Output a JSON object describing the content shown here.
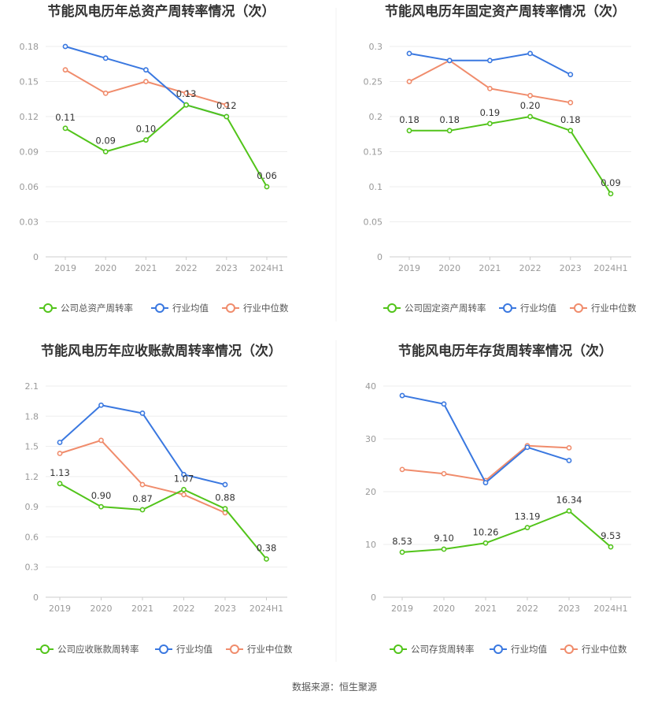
{
  "source_label": "数据来源：恒生聚源",
  "colors": {
    "company": "#52c41a",
    "industry_avg": "#3a78e0",
    "industry_median": "#f08c6c"
  },
  "chart_data": [
    {
      "type": "line",
      "title": "节能风电历年总资产周转率情况（次）",
      "categories": [
        "2019",
        "2020",
        "2021",
        "2022",
        "2023",
        "2024H1"
      ],
      "y_ticks": [
        "0",
        "0.03",
        "0.06",
        "0.09",
        "0.12",
        "0.15",
        "0.18"
      ],
      "ylim": [
        0,
        0.18
      ],
      "series": [
        {
          "name": "公司总资产周转率",
          "key": "company",
          "values": [
            0.11,
            0.09,
            0.1,
            0.13,
            0.12,
            0.06
          ],
          "labels": [
            "0.11",
            "0.09",
            "0.10",
            "0.13",
            "0.12",
            "0.06"
          ]
        },
        {
          "name": "行业均值",
          "key": "industry_avg",
          "values": [
            0.18,
            0.17,
            0.16,
            0.13,
            0.12,
            null
          ]
        },
        {
          "name": "行业中位数",
          "key": "industry_median",
          "values": [
            0.16,
            0.14,
            0.15,
            0.14,
            0.13,
            null
          ]
        }
      ]
    },
    {
      "type": "line",
      "title": "节能风电历年固定资产周转率情况（次）",
      "categories": [
        "2019",
        "2020",
        "2021",
        "2022",
        "2023",
        "2024H1"
      ],
      "y_ticks": [
        "0",
        "0.05",
        "0.1",
        "0.15",
        "0.2",
        "0.25",
        "0.3"
      ],
      "ylim": [
        0,
        0.3
      ],
      "series": [
        {
          "name": "公司固定资产周转率",
          "key": "company",
          "values": [
            0.18,
            0.18,
            0.19,
            0.2,
            0.18,
            0.09
          ],
          "labels": [
            "0.18",
            "0.18",
            "0.19",
            "0.20",
            "0.18",
            "0.09"
          ]
        },
        {
          "name": "行业均值",
          "key": "industry_avg",
          "values": [
            0.29,
            0.28,
            0.28,
            0.29,
            0.26,
            null
          ]
        },
        {
          "name": "行业中位数",
          "key": "industry_median",
          "values": [
            0.25,
            0.28,
            0.24,
            0.23,
            0.22,
            null
          ]
        }
      ]
    },
    {
      "type": "line",
      "title": "节能风电历年应收账款周转率情况（次）",
      "categories": [
        "2019",
        "2020",
        "2021",
        "2022",
        "2023",
        "2024H1"
      ],
      "y_ticks": [
        "0",
        "0.3",
        "0.6",
        "0.9",
        "1.2",
        "1.5",
        "1.8",
        "2.1"
      ],
      "ylim": [
        0,
        2.1
      ],
      "series": [
        {
          "name": "公司应收账款周转率",
          "key": "company",
          "values": [
            1.13,
            0.9,
            0.87,
            1.07,
            0.88,
            0.38
          ],
          "labels": [
            "1.13",
            "0.90",
            "0.87",
            "1.07",
            "0.88",
            "0.38"
          ]
        },
        {
          "name": "行业均值",
          "key": "industry_avg",
          "values": [
            1.54,
            1.91,
            1.83,
            1.22,
            1.12,
            null
          ]
        },
        {
          "name": "行业中位数",
          "key": "industry_median",
          "values": [
            1.43,
            1.56,
            1.12,
            1.02,
            0.84,
            null
          ]
        }
      ]
    },
    {
      "type": "line",
      "title": "节能风电历年存货周转率情况（次）",
      "categories": [
        "2019",
        "2020",
        "2021",
        "2022",
        "2023",
        "2024H1"
      ],
      "y_ticks": [
        "0",
        "10",
        "20",
        "30",
        "40"
      ],
      "ylim": [
        0,
        40
      ],
      "series": [
        {
          "name": "公司存货周转率",
          "key": "company",
          "values": [
            8.53,
            9.1,
            10.26,
            13.19,
            16.34,
            9.53
          ],
          "labels": [
            "8.53",
            "9.10",
            "10.26",
            "13.19",
            "16.34",
            "9.53"
          ]
        },
        {
          "name": "行业均值",
          "key": "industry_avg",
          "values": [
            38.2,
            36.6,
            21.7,
            28.4,
            25.9,
            null
          ]
        },
        {
          "name": "行业中位数",
          "key": "industry_median",
          "values": [
            24.2,
            23.4,
            22.1,
            28.7,
            28.3,
            null
          ]
        }
      ]
    }
  ]
}
